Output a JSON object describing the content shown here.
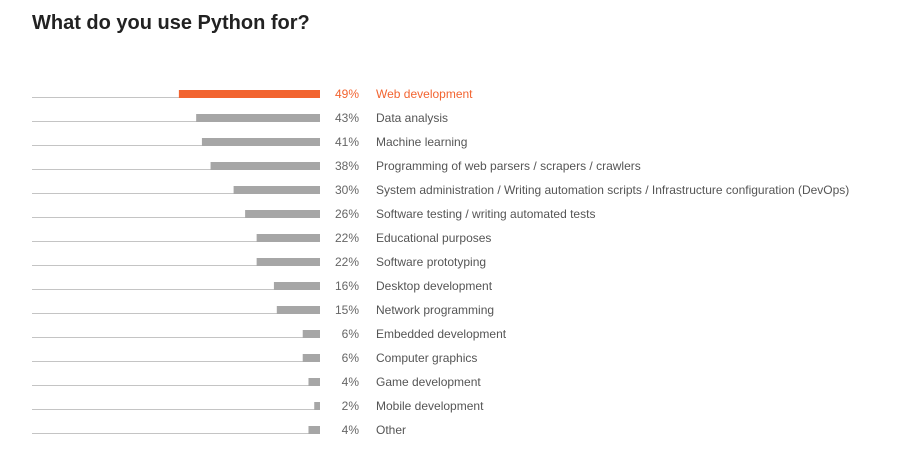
{
  "title": "What do you use Python for?",
  "colors": {
    "highlight": "#f26430",
    "bar": "#a6a6a6",
    "baseline": "#c4c4c4"
  },
  "chart_data": {
    "type": "bar",
    "orientation": "horizontal",
    "title": "What do you use Python for?",
    "grid": false,
    "xlim": [
      0,
      100
    ],
    "highlight_index": 0,
    "categories": [
      "Web development",
      "Data analysis",
      "Machine learning",
      "Programming of web parsers / scrapers / crawlers",
      "System administration / Writing automation scripts / Infrastructure configuration (DevOps)",
      "Software testing / writing automated tests",
      "Educational purposes",
      "Software prototyping",
      "Desktop development",
      "Network programming",
      "Embedded development",
      "Computer graphics",
      "Game development",
      "Mobile development",
      "Other"
    ],
    "values": [
      49,
      43,
      41,
      38,
      30,
      26,
      22,
      22,
      16,
      15,
      6,
      6,
      4,
      2,
      4
    ],
    "value_labels": [
      "49%",
      "43%",
      "41%",
      "38%",
      "30%",
      "26%",
      "22%",
      "22%",
      "16%",
      "15%",
      "6%",
      "6%",
      "4%",
      "2%",
      "4%"
    ]
  }
}
